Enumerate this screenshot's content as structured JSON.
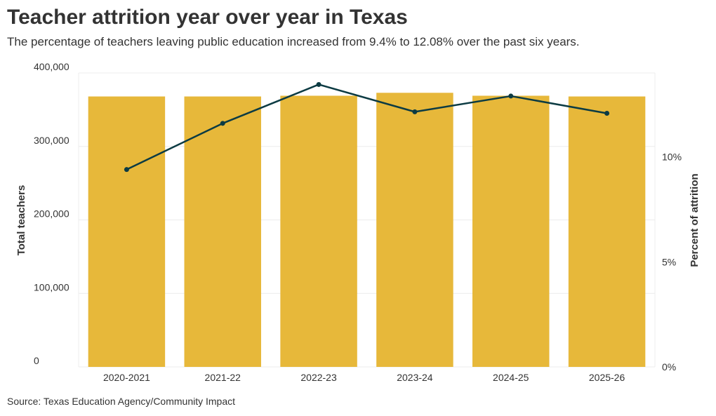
{
  "colors": {
    "bar": "#e7b83a",
    "line": "#0c3b43",
    "grid": "#ececec",
    "text": "#333333"
  },
  "header": {
    "title": "Teacher attrition year over year in Texas",
    "subtitle": "The percentage of teachers leaving public education increased from 9.4% to 12.08% over the past six years."
  },
  "footer": {
    "source": "Source: Texas Education Agency/Community Impact"
  },
  "chart_data": {
    "type": "bar",
    "title": "Teacher attrition year over year in Texas",
    "subtitle": "The percentage of teachers leaving public education increased from 9.4% to 12.08% over the past six years.",
    "categories": [
      "2020-2021",
      "2021-22",
      "2022-23",
      "2023-24",
      "2024-25",
      "2025-26"
    ],
    "series": [
      {
        "type": "bar",
        "axis": "left",
        "values": [
          368000,
          368000,
          369000,
          373000,
          369000,
          368000
        ]
      },
      {
        "type": "line",
        "axis": "right",
        "values": [
          9.4,
          11.6,
          13.45,
          12.15,
          12.9,
          12.08
        ]
      }
    ],
    "ylabel": "Total teachers",
    "ylim": [
      0,
      400000
    ],
    "yticks": [
      "0",
      "100,000",
      "200,000",
      "300,000",
      "400,000"
    ],
    "ytick_values": [
      0,
      100000,
      200000,
      300000,
      400000
    ],
    "y2label": "Percent of attrition",
    "y2lim": [
      0,
      14
    ],
    "y2ticks": [
      "0%",
      "5%",
      "10%"
    ],
    "y2tick_values": [
      0,
      5,
      10
    ],
    "grid": true,
    "legend": "none"
  }
}
